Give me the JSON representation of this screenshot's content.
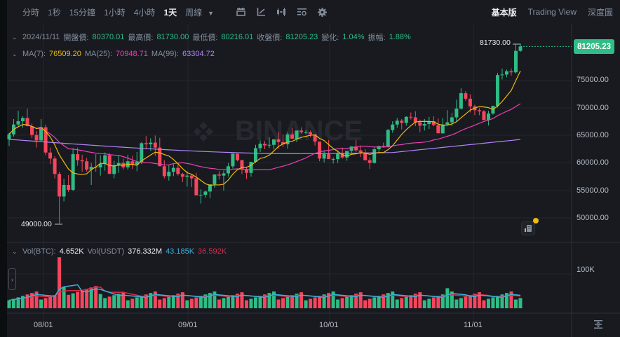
{
  "toolbar": {
    "timeframes": [
      {
        "label": "分時",
        "active": false
      },
      {
        "label": "1秒",
        "active": false
      },
      {
        "label": "15分鐘",
        "active": false
      },
      {
        "label": "1小時",
        "active": false
      },
      {
        "label": "4小時",
        "active": false
      },
      {
        "label": "1天",
        "active": true
      },
      {
        "label": "周線",
        "active": false
      }
    ],
    "tools": [
      "indicators-icon",
      "draw-line-icon",
      "candlestick-type-icon",
      "chart-settings-list-icon",
      "gear-icon"
    ],
    "views": [
      {
        "label": "基本版",
        "active": true
      },
      {
        "label": "Trading View",
        "active": false
      },
      {
        "label": "深度圖",
        "active": false
      }
    ]
  },
  "ohlc": {
    "date": "2024/11/11",
    "open_label": "開盤價:",
    "open": "80370.01",
    "high_label": "最高價:",
    "high": "81730.00",
    "low_label": "最低價:",
    "low": "80216.01",
    "close_label": "收盤價:",
    "close": "81205.23",
    "change_label": "變化:",
    "change": "1.04%",
    "amplitude_label": "振幅:",
    "amplitude": "1.88%"
  },
  "ma": {
    "ma7_label": "MA(7):",
    "ma7": "76509.20",
    "ma7_color": "#f0b90b",
    "ma25_label": "MA(25):",
    "ma25": "70948.71",
    "ma25_color": "#eb40b5",
    "ma99_label": "MA(99):",
    "ma99": "63304.72",
    "ma99_color": "#b385f8"
  },
  "volume": {
    "btc_label": "Vol(BTC):",
    "btc": "4.652K",
    "usdt_label": "Vol(USDT)",
    "usdt": "376.332M",
    "ma5": "43.185K",
    "ma5_color": "#3bb0d7",
    "ma10": "36.592K",
    "ma10_color": "#e0294a",
    "axis_label": "100K"
  },
  "price_axis": [
    "75000.00",
    "70000.00",
    "65000.00",
    "60000.00",
    "55000.00",
    "50000.00"
  ],
  "current_price": "81205.23",
  "high_marker": "81730.00",
  "low_marker": "49000.00",
  "watermark": "BINANCE",
  "x_axis": [
    "08/01",
    "09/01",
    "10/01",
    "11/01"
  ],
  "colors": {
    "up": "#2ebd85",
    "down": "#f6465d",
    "bg": "#181a20",
    "grid": "#23262d"
  },
  "chart_data": {
    "type": "candlestick",
    "title": "BTC/USDT 1D",
    "x_ticks": [
      "08/01",
      "09/01",
      "10/01",
      "11/01"
    ],
    "y_ticks": [
      50000,
      55000,
      60000,
      65000,
      70000,
      75000
    ],
    "candles": [
      [
        64300,
        65500,
        63100,
        65200
      ],
      [
        65200,
        68000,
        64800,
        67000
      ],
      [
        67000,
        69500,
        66600,
        67600
      ],
      [
        67600,
        68500,
        66400,
        68200
      ],
      [
        68200,
        69900,
        66800,
        66700
      ],
      [
        66700,
        67200,
        64500,
        65100
      ],
      [
        65100,
        65800,
        62800,
        64100
      ],
      [
        64100,
        68000,
        63900,
        66500
      ],
      [
        66500,
        67000,
        61400,
        61900
      ],
      [
        61900,
        62800,
        59800,
        60800
      ],
      [
        60800,
        61200,
        57200,
        58000
      ],
      [
        58000,
        58400,
        49000,
        53900
      ],
      [
        53900,
        57100,
        53000,
        56000
      ],
      [
        56000,
        57800,
        54700,
        55100
      ],
      [
        55100,
        62700,
        54900,
        61600
      ],
      [
        61600,
        62800,
        59500,
        60500
      ],
      [
        60500,
        61500,
        58400,
        60300
      ],
      [
        60300,
        60900,
        58400,
        58800
      ],
      [
        58800,
        60000,
        56000,
        59300
      ],
      [
        59300,
        61600,
        58400,
        59200
      ],
      [
        59200,
        61400,
        57700,
        59800
      ],
      [
        59800,
        61900,
        58600,
        61400
      ],
      [
        61400,
        61800,
        58300,
        58000
      ],
      [
        58000,
        60400,
        57200,
        59600
      ],
      [
        59600,
        61300,
        58200,
        60000
      ],
      [
        60000,
        60800,
        58800,
        59200
      ],
      [
        59200,
        61500,
        58800,
        60300
      ],
      [
        60300,
        61300,
        58900,
        59700
      ],
      [
        59700,
        62000,
        58500,
        60200
      ],
      [
        60200,
        63800,
        59800,
        63600
      ],
      [
        63600,
        64900,
        62500,
        63400
      ],
      [
        63400,
        64500,
        62200,
        63700
      ],
      [
        63700,
        65000,
        61300,
        62800
      ],
      [
        62800,
        64600,
        61600,
        59400
      ],
      [
        59400,
        60500,
        57200,
        57600
      ],
      [
        57600,
        59600,
        56800,
        58400
      ],
      [
        58400,
        59800,
        57600,
        59100
      ],
      [
        59100,
        59800,
        57700,
        58000
      ],
      [
        58000,
        58200,
        56500,
        57500
      ],
      [
        57500,
        58500,
        55700,
        57700
      ],
      [
        57700,
        57900,
        55600,
        57200
      ],
      [
        57200,
        58200,
        54200,
        54100
      ],
      [
        54100,
        55200,
        52600,
        54200
      ],
      [
        54200,
        55000,
        53700,
        54800
      ],
      [
        54800,
        55700,
        53600,
        56100
      ],
      [
        56100,
        57900,
        55500,
        57900
      ],
      [
        57900,
        58500,
        57000,
        57700
      ],
      [
        57700,
        58600,
        55000,
        58100
      ],
      [
        58100,
        60000,
        57500,
        59400
      ],
      [
        59400,
        61200,
        59000,
        61700
      ],
      [
        61700,
        61600,
        60300,
        60500
      ],
      [
        60500,
        60600,
        58000,
        58900
      ],
      [
        58900,
        59300,
        57100,
        58200
      ],
      [
        58200,
        60000,
        57500,
        60200
      ],
      [
        60200,
        63300,
        60000,
        62700
      ],
      [
        62700,
        64100,
        62000,
        63500
      ],
      [
        63500,
        64000,
        62500,
        63200
      ],
      [
        63200,
        64700,
        62700,
        63300
      ],
      [
        63300,
        63900,
        62500,
        64300
      ],
      [
        64300,
        65600,
        62600,
        63800
      ],
      [
        63800,
        65200,
        62900,
        63400
      ],
      [
        63400,
        65600,
        62600,
        65200
      ],
      [
        65200,
        66400,
        64400,
        64400
      ],
      [
        64400,
        65800,
        63800,
        65900
      ],
      [
        65900,
        66500,
        65300,
        65600
      ],
      [
        65600,
        66000,
        65300,
        65600
      ],
      [
        65600,
        65900,
        64700,
        65200
      ],
      [
        65200,
        64800,
        63200,
        63900
      ],
      [
        63900,
        63800,
        60300,
        60800
      ],
      [
        60800,
        62300,
        60100,
        61600
      ],
      [
        61600,
        64200,
        61200,
        60700
      ],
      [
        60700,
        61000,
        59900,
        60700
      ],
      [
        60700,
        62300,
        60000,
        61800
      ],
      [
        61800,
        62800,
        60800,
        61000
      ],
      [
        61000,
        62100,
        60400,
        62200
      ],
      [
        62200,
        62800,
        61800,
        63000
      ],
      [
        63000,
        64200,
        62000,
        62300
      ],
      [
        62300,
        63200,
        61100,
        61900
      ],
      [
        61900,
        62500,
        60500,
        60500
      ],
      [
        60500,
        61000,
        58900,
        60000
      ],
      [
        60000,
        62800,
        59900,
        62500
      ],
      [
        62500,
        63000,
        62000,
        63100
      ],
      [
        63100,
        63700,
        62800,
        62900
      ],
      [
        62900,
        66200,
        62800,
        66000
      ],
      [
        66000,
        67600,
        65500,
        67000
      ],
      [
        67000,
        68200,
        66400,
        67700
      ],
      [
        67700,
        68000,
        66100,
        67300
      ],
      [
        67300,
        68500,
        66800,
        68400
      ],
      [
        68400,
        69200,
        67900,
        68300
      ],
      [
        68300,
        69400,
        66700,
        67400
      ],
      [
        67400,
        67900,
        65600,
        66800
      ],
      [
        66800,
        68000,
        65900,
        67100
      ],
      [
        67100,
        68400,
        66200,
        67600
      ],
      [
        67600,
        68500,
        66700,
        66900
      ],
      [
        66900,
        68100,
        65600,
        65400
      ],
      [
        65400,
        68200,
        65300,
        67000
      ],
      [
        67000,
        69600,
        66800,
        67400
      ],
      [
        67400,
        69100,
        66700,
        68300
      ],
      [
        68300,
        71500,
        67500,
        69900
      ],
      [
        69900,
        73600,
        69700,
        72700
      ],
      [
        72700,
        73100,
        71300,
        71700
      ],
      [
        71700,
        72500,
        69200,
        70300
      ],
      [
        70300,
        70600,
        68700,
        69600
      ],
      [
        69600,
        70000,
        68700,
        69400
      ],
      [
        69400,
        69600,
        68000,
        67800
      ],
      [
        67800,
        69500,
        66800,
        69000
      ],
      [
        69000,
        70400,
        68800,
        70400
      ],
      [
        70400,
        76400,
        70100,
        76000
      ],
      [
        76000,
        77200,
        75200,
        76100
      ],
      [
        76100,
        77000,
        75600,
        76700
      ],
      [
        76700,
        77200,
        75900,
        76500
      ],
      [
        76500,
        81700,
        76300,
        80400
      ],
      [
        80400,
        81730,
        80216,
        81205
      ]
    ],
    "ma7_series_note": "yellow line",
    "ma25_series_note": "pink line",
    "ma99_series_note": "purple line"
  }
}
